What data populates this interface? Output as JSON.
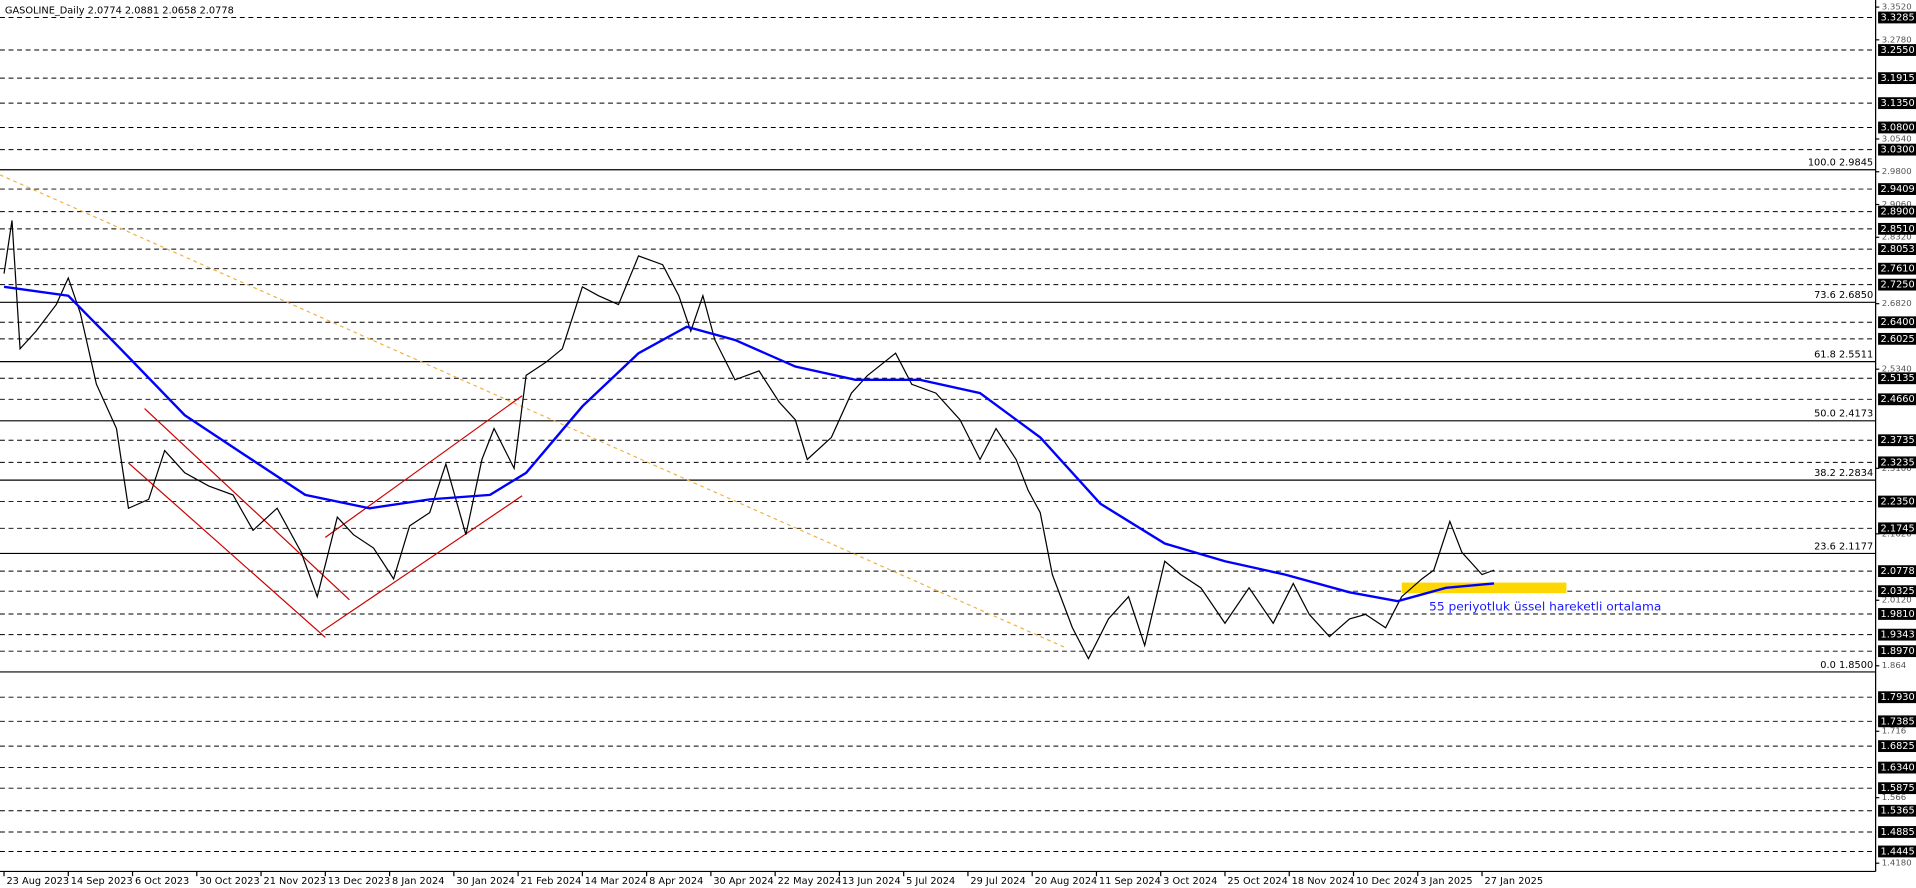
{
  "chart_data": {
    "type": "line",
    "title": "GASOLINE_Daily  2.0774 2.0881 2.0658 2.0778",
    "annotation": "55 periyotluk üssel hareketli ortalama",
    "xlim": [
      -1,
      466
    ],
    "ylim": [
      1.418,
      3.352
    ],
    "xticks": [
      {
        "value": 0,
        "label": "23 Aug 2023"
      },
      {
        "value": 16,
        "label": "14 Sep 2023"
      },
      {
        "value": 32,
        "label": "6 Oct 2023"
      },
      {
        "value": 48,
        "label": "30 Oct 2023"
      },
      {
        "value": 64,
        "label": "21 Nov 2023"
      },
      {
        "value": 80,
        "label": "13 Dec 2023"
      },
      {
        "value": 96,
        "label": "8 Jan 2024"
      },
      {
        "value": 112,
        "label": "30 Jan 2024"
      },
      {
        "value": 128,
        "label": "21 Feb 2024"
      },
      {
        "value": 144,
        "label": "14 Mar 2024"
      },
      {
        "value": 160,
        "label": "8 Apr 2024"
      },
      {
        "value": 176,
        "label": "30 Apr 2024"
      },
      {
        "value": 192,
        "label": "22 May 2024"
      },
      {
        "value": 208,
        "label": "13 Jun 2024"
      },
      {
        "value": 224,
        "label": "5 Jul 2024"
      },
      {
        "value": 240,
        "label": "29 Jul 2024"
      },
      {
        "value": 256,
        "label": "20 Aug 2024"
      },
      {
        "value": 272,
        "label": "11 Sep 2024"
      },
      {
        "value": 288,
        "label": "3 Oct 2024"
      },
      {
        "value": 304,
        "label": "25 Oct 2024"
      },
      {
        "value": 320,
        "label": "18 Nov 2024"
      },
      {
        "value": 336,
        "label": "10 Dec 2024"
      },
      {
        "value": 352,
        "label": "3 Jan 2025"
      },
      {
        "value": 368,
        "label": "27 Jan 2025"
      }
    ],
    "yticks": [
      {
        "value": 3.352,
        "label": "3.3520"
      },
      {
        "value": 3.278,
        "label": "3.2780"
      },
      {
        "value": 3.054,
        "label": "3.0540"
      },
      {
        "value": 2.98,
        "label": "2.9800"
      },
      {
        "value": 2.906,
        "label": "2.9060"
      },
      {
        "value": 2.832,
        "label": "2.8320"
      },
      {
        "value": 2.682,
        "label": "2.6820"
      },
      {
        "value": 2.534,
        "label": "2.5340"
      },
      {
        "value": 2.31,
        "label": "2.3100"
      },
      {
        "value": 2.162,
        "label": "2.1620"
      },
      {
        "value": 2.012,
        "label": "2.0120"
      },
      1.864,
      1.716,
      1.566,
      {
        "value": 1.418,
        "label": "1.4180"
      }
    ],
    "levels": [
      3.3285,
      {
        "value": 3.255,
        "label": "3.2550"
      },
      3.1915,
      {
        "value": 3.135,
        "label": "3.1350"
      },
      {
        "value": 3.08,
        "label": "3.0800"
      },
      {
        "value": 3.03,
        "label": "3.0300"
      },
      2.9409,
      {
        "value": 2.89,
        "label": "2.8900"
      },
      {
        "value": 2.851,
        "label": "2.8510"
      },
      2.8053,
      {
        "value": 2.761,
        "label": "2.7610"
      },
      {
        "value": 2.725,
        "label": "2.7250"
      },
      {
        "value": 2.64,
        "label": "2.6400"
      },
      2.6025,
      2.5135,
      {
        "value": 2.466,
        "label": "2.4660"
      },
      2.3735,
      2.3235,
      {
        "value": 2.235,
        "label": "2.2350"
      },
      2.1745,
      2.0778,
      2.0325,
      {
        "value": 1.981,
        "label": "1.9810"
      },
      1.9343,
      {
        "value": 1.897,
        "label": "1.8970"
      },
      {
        "value": 1.793,
        "label": "1.7930"
      },
      1.7385,
      1.6825,
      {
        "value": 1.634,
        "label": "1.6340"
      },
      1.5875,
      1.5365,
      1.4885,
      1.4445
    ],
    "fib_levels": [
      {
        "value": 2.9845,
        "label": "100.0 2.9845"
      },
      {
        "value": 2.685,
        "label": "73.6 2.6850"
      },
      {
        "value": 2.5511,
        "label": "61.8 2.5511"
      },
      {
        "value": 2.4173,
        "label": "50.0 2.4173"
      },
      {
        "value": 2.2834,
        "label": "38.2 2.2834"
      },
      {
        "value": 2.1177,
        "label": "23.6 2.1177"
      },
      {
        "value": 1.85,
        "label": "0.0 1.8500"
      }
    ],
    "series": [
      {
        "color": "#000000",
        "x": [
          0,
          2,
          4,
          8,
          13,
          16,
          19,
          23,
          28,
          31,
          36,
          40,
          45,
          51,
          57,
          62,
          68,
          74,
          78,
          83,
          87,
          92,
          97,
          101,
          106,
          110,
          115,
          119,
          122,
          127,
          130,
          135,
          139,
          144,
          148,
          153,
          158,
          164,
          168,
          171,
          174,
          177,
          182,
          188,
          193,
          197,
          200,
          206,
          211,
          215,
          222,
          226,
          232,
          238,
          243,
          247,
          252,
          255,
          258,
          261,
          266,
          270,
          275,
          280,
          284,
          289,
          293,
          298,
          304,
          310,
          316,
          321,
          325,
          330,
          335,
          339,
          344,
          348,
          353,
          356,
          360,
          363,
          368,
          371
        ],
        "values": [
          2.75,
          2.87,
          2.58,
          2.62,
          2.68,
          2.74,
          2.66,
          2.5,
          2.4,
          2.22,
          2.24,
          2.35,
          2.3,
          2.27,
          2.25,
          2.17,
          2.22,
          2.12,
          2.02,
          2.2,
          2.16,
          2.13,
          2.06,
          2.18,
          2.21,
          2.32,
          2.16,
          2.33,
          2.4,
          2.31,
          2.52,
          2.55,
          2.58,
          2.72,
          2.7,
          2.68,
          2.79,
          2.77,
          2.7,
          2.62,
          2.7,
          2.6,
          2.51,
          2.53,
          2.46,
          2.42,
          2.33,
          2.38,
          2.48,
          2.52,
          2.57,
          2.5,
          2.48,
          2.42,
          2.33,
          2.4,
          2.33,
          2.26,
          2.21,
          2.07,
          1.95,
          1.88,
          1.97,
          2.02,
          1.91,
          2.1,
          2.07,
          2.04,
          1.96,
          2.04,
          1.96,
          2.05,
          1.98,
          1.93,
          1.97,
          1.98,
          1.95,
          2.02,
          2.06,
          2.08,
          2.19,
          2.12,
          2.07,
          2.08
        ]
      },
      {
        "color": "#0000ff",
        "x": [
          0,
          16,
          29,
          45,
          60,
          75,
          91,
          106,
          121,
          130,
          144,
          158,
          170,
          182,
          197,
          212,
          228,
          243,
          258,
          273,
          289,
          304,
          319,
          335,
          347,
          359,
          371
        ],
        "values": [
          2.72,
          2.7,
          2.58,
          2.43,
          2.34,
          2.25,
          2.22,
          2.24,
          2.25,
          2.3,
          2.45,
          2.57,
          2.63,
          2.6,
          2.54,
          2.51,
          2.51,
          2.48,
          2.38,
          2.23,
          2.14,
          2.1,
          2.07,
          2.03,
          2.01,
          2.04,
          2.05
        ]
      }
    ],
    "trendlines": [
      {
        "color": "#cc0000",
        "x": [
          35,
          86
        ],
        "y": [
          2.445,
          2.013
        ]
      },
      {
        "color": "#cc0000",
        "x": [
          31,
          80
        ],
        "y": [
          2.322,
          1.928
        ]
      },
      {
        "color": "#cc0000",
        "x": [
          79,
          129
        ],
        "y": [
          1.941,
          2.248
        ]
      },
      {
        "color": "#cc0000",
        "x": [
          80,
          129
        ],
        "y": [
          2.154,
          2.474
        ]
      },
      {
        "color": "#f0b040",
        "x": [
          -1,
          264
        ],
        "y": [
          2.973,
          1.906
        ]
      }
    ],
    "zone": {
      "color": "#ffd700",
      "x": [
        348,
        389
      ],
      "y": [
        2.028,
        2.052
      ]
    }
  }
}
